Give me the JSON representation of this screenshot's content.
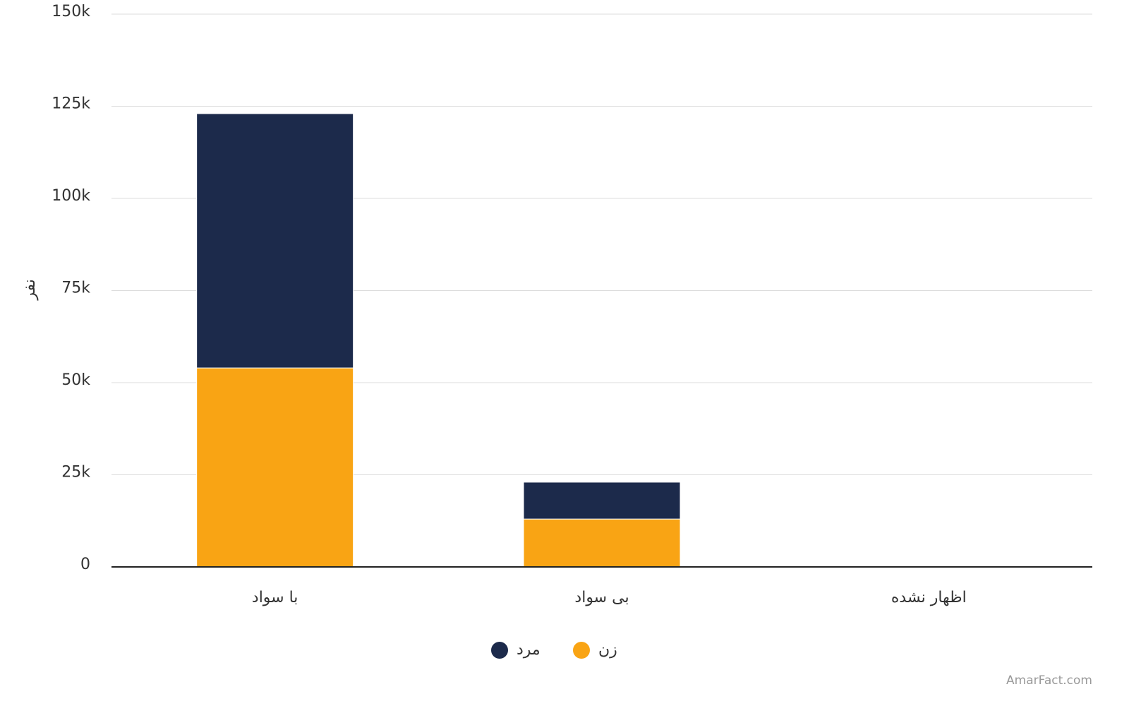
{
  "chart_data": {
    "type": "stacked_bar",
    "y_label": "نفر",
    "categories": [
      "با سواد",
      "بی سواد",
      "اظهار نشده"
    ],
    "series": [
      {
        "name": "مرد",
        "color": "#1c2a4b",
        "values": [
          69000,
          10000,
          0
        ]
      },
      {
        "name": "زن",
        "color": "#f9a414",
        "values": [
          54000,
          13000,
          0
        ]
      }
    ],
    "ylim": [
      0,
      150000
    ],
    "yticks": [
      0,
      {
        "value": 25000,
        "label": "25k"
      },
      {
        "value": 50000,
        "label": "50k"
      },
      {
        "value": 75000,
        "label": "75k"
      },
      {
        "value": 100000,
        "label": "100k"
      },
      {
        "value": 125000,
        "label": "125k"
      },
      {
        "value": 150000,
        "label": "150k"
      }
    ],
    "grid": true,
    "watermark": "AmarFact.com"
  }
}
